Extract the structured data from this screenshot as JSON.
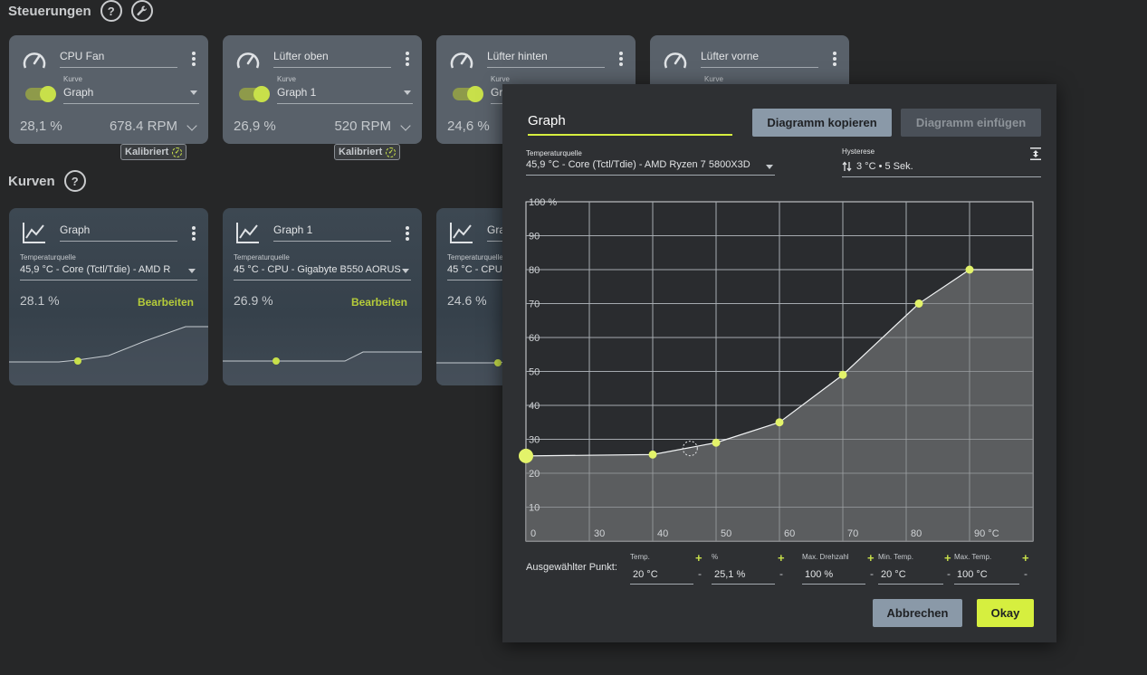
{
  "controls": {
    "title": "Steuerungen",
    "help_label": "?",
    "cards": [
      {
        "name": "CPU Fan",
        "curve_label": "Kurve",
        "curve": "Graph",
        "pct": "28,1 %",
        "rpm": "678.4 RPM",
        "badge": "Kalibriert"
      },
      {
        "name": "Lüfter oben",
        "curve_label": "Kurve",
        "curve": "Graph 1",
        "pct": "26,9 %",
        "rpm": "520 RPM",
        "badge": "Kalibriert"
      },
      {
        "name": "Lüfter hinten",
        "curve_label": "Kurve",
        "curve": "Gr",
        "pct": "24,6 %"
      },
      {
        "name": "Lüfter vorne",
        "curve_label": "Kurve"
      }
    ]
  },
  "curves": {
    "title": "Kurven",
    "help_label": "?",
    "cards": [
      {
        "name": "Graph",
        "src_label": "Temperaturquelle",
        "src": "45,9 °C - Core (Tctl/Tdie) - AMD R",
        "pct": "28.1 %",
        "edit": "Bearbeiten"
      },
      {
        "name": "Graph 1",
        "src_label": "Temperaturquelle",
        "src": "45 °C - CPU - Gigabyte B550 AORUS",
        "pct": "26.9 %",
        "edit": "Bearbeiten"
      },
      {
        "name": "Gra",
        "src_label": "Temperaturquelle",
        "src": "45 °C - CPU",
        "pct": "24.6 %"
      }
    ]
  },
  "dialog": {
    "title_value": "Graph",
    "copy_label": "Diagramm kopieren",
    "paste_label": "Diagramm einfügen",
    "source_label": "Temperaturquelle",
    "source_value": "45,9 °C - Core (Tctl/Tdie) - AMD Ryzen 7 5800X3D",
    "hysteresis_label": "Hysterese",
    "hysteresis_value": "3 °C • 5 Sek.",
    "selected_point_label": "Ausgewählter Punkt:",
    "fields": {
      "temp": {
        "label": "Temp.",
        "value": "20 °C"
      },
      "pct": {
        "label": "%",
        "value": "25,1 %"
      },
      "max_speed": {
        "label": "Max. Drehzahl",
        "value": "100 %"
      },
      "min_temp": {
        "label": "Min. Temp.",
        "value": "20 °C"
      },
      "max_temp": {
        "label": "Max. Temp.",
        "value": "100 °C"
      }
    },
    "plus": "+",
    "minus": "-",
    "cancel_label": "Abbrechen",
    "ok_label": "Okay"
  },
  "colors": {
    "accent": "#d6ef3f",
    "point": "#e3f36a",
    "card": "#59616a"
  },
  "chart_data": {
    "type": "area",
    "x_ticks": [
      "0",
      "30",
      "40",
      "50",
      "60",
      "70",
      "80",
      "90 °C"
    ],
    "y_ticks": [
      "10",
      "20",
      "30",
      "40",
      "50",
      "60",
      "70",
      "80",
      "90",
      "100 %"
    ],
    "x": [
      20,
      40,
      50,
      60,
      70,
      82,
      90,
      100
    ],
    "y": [
      25.1,
      25.5,
      29,
      35,
      49,
      70,
      80,
      80
    ],
    "grid": true
  }
}
